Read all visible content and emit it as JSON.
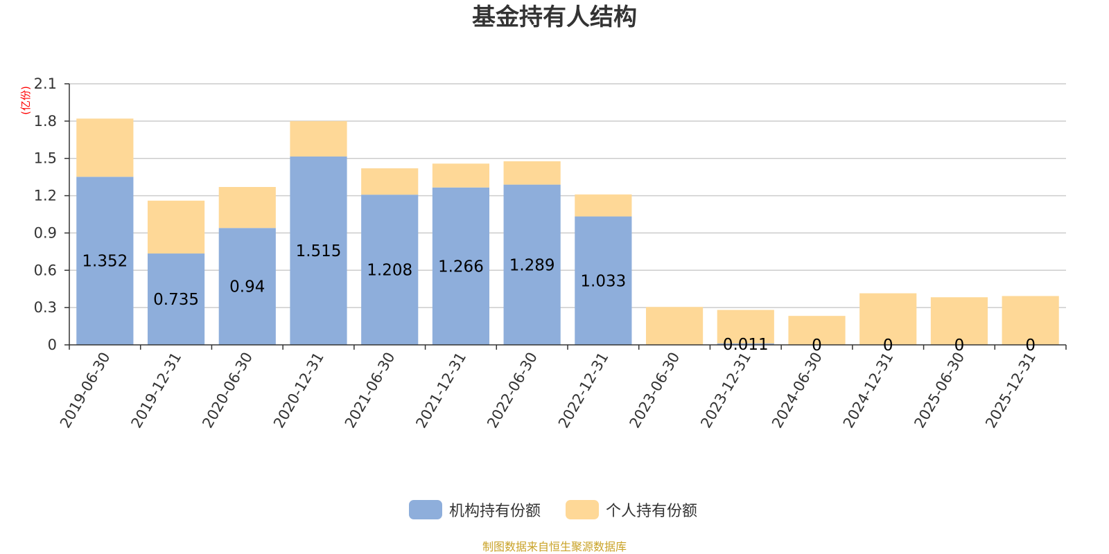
{
  "colors": {
    "institutional": "#8eaedb",
    "individual": "#fed897",
    "grid": "#cccccc",
    "axis": "#333333",
    "unit": "#ff0000",
    "source": "#c9a227"
  },
  "chart_data": {
    "type": "bar",
    "stacked": true,
    "title": "基金持有人结构",
    "ylabel": "(亿份)",
    "xlabel": "",
    "ylim": [
      0,
      2.1
    ],
    "yticks": [
      "0",
      "0.3",
      "0.6",
      "0.9",
      "1.2",
      "1.5",
      "1.8",
      "2.1"
    ],
    "grid": true,
    "legend_position": "bottom-center",
    "categories": [
      "2019-06-30",
      "2019-12-31",
      "2020-06-30",
      "2020-12-31",
      "2021-06-30",
      "2021-12-31",
      "2022-06-30",
      "2022-12-31",
      "2023-06-30",
      "2023-12-31",
      "2024-06-30",
      "2024-12-31",
      "2025-06-30",
      "2025-12-31"
    ],
    "series": [
      {
        "name": "机构持有份额",
        "values": [
          1.352,
          0.735,
          0.94,
          1.515,
          1.208,
          1.266,
          1.289,
          1.033,
          0,
          0.011,
          0,
          0,
          0,
          0
        ],
        "labels": [
          "1.352",
          "0.735",
          "0.94",
          "1.515",
          "1.208",
          "1.266",
          "1.289",
          "1.033",
          "",
          "0.011",
          "0",
          "0",
          "0",
          "0"
        ]
      },
      {
        "name": "个人持有份额",
        "values": [
          0.468,
          0.425,
          0.33,
          0.285,
          0.212,
          0.192,
          0.188,
          0.177,
          0.305,
          0.27,
          0.233,
          0.415,
          0.383,
          0.393
        ]
      }
    ],
    "source": "制图数据来自恒生聚源数据库"
  }
}
